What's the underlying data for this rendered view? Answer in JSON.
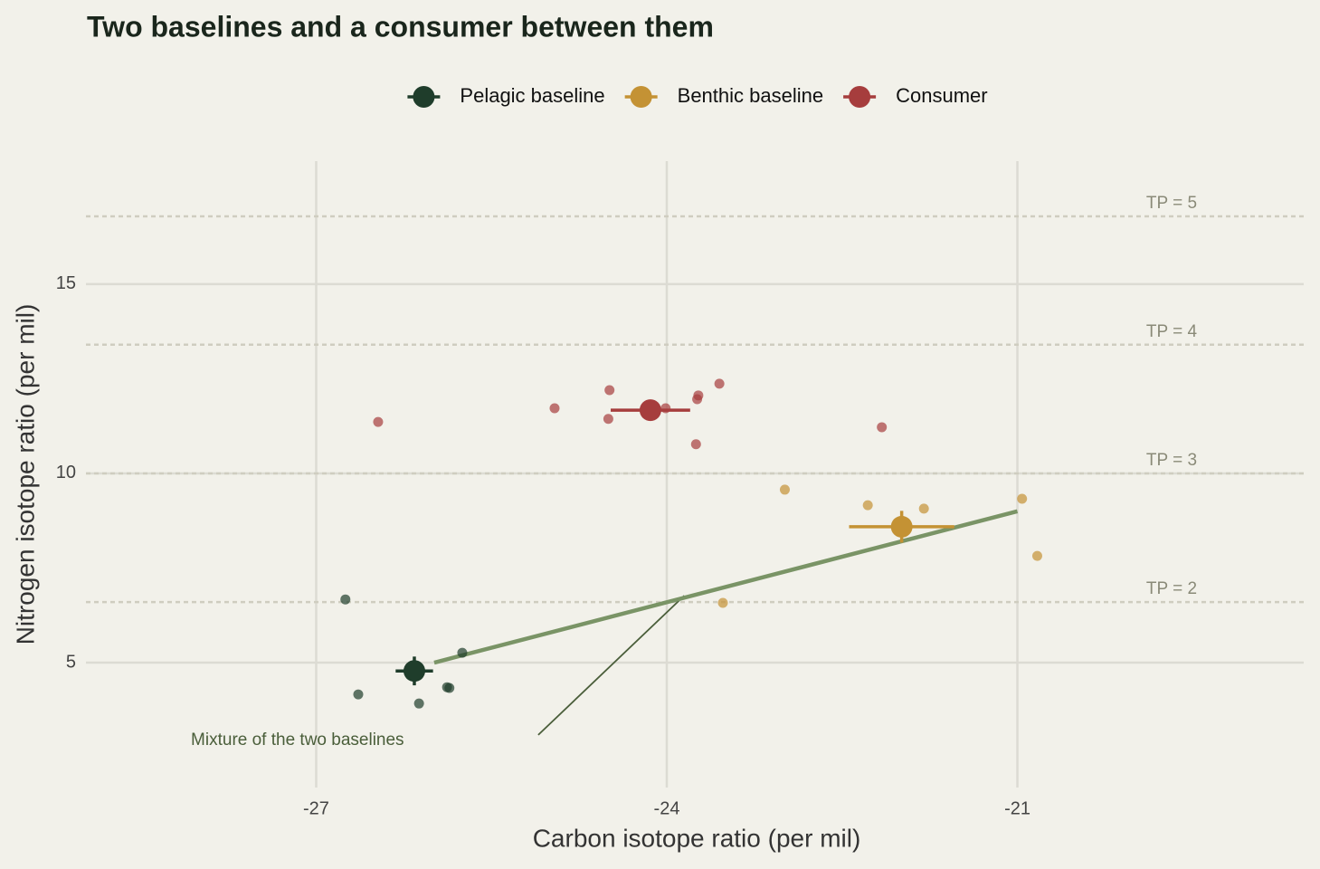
{
  "chart_data": {
    "type": "scatter",
    "title": "Two baselines and a consumer between them",
    "x_label": "Carbon isotope ratio (per mil)",
    "y_label": "Nitrogen isotope ratio (per mil)",
    "xlim": [
      -28.97,
      -18.55
    ],
    "ylim": [
      1.7,
      18.25
    ],
    "xticks": [
      -27,
      -24,
      -21
    ],
    "yticks": [
      5,
      10,
      15
    ],
    "grid": true,
    "legend": "top",
    "series": [
      {
        "name": "Pelagic baseline",
        "color": "#1f3d2b",
        "x": [
          -26.75,
          -26.64,
          -26.12,
          -25.88,
          -25.86,
          -25.75
        ],
        "y": [
          6.67,
          4.16,
          3.92,
          4.35,
          4.33,
          5.26
        ],
        "mean": {
          "x": -26.16,
          "y": 4.78,
          "x_err": 0.16,
          "y_err": 0.38
        }
      },
      {
        "name": "Benthic baseline",
        "color": "#c49234",
        "x": [
          -22.99,
          -22.28,
          -21.8,
          -20.96,
          -20.83,
          -23.52
        ],
        "y": [
          9.57,
          9.16,
          9.07,
          9.33,
          7.82,
          6.58
        ],
        "mean": {
          "x": -21.99,
          "y": 8.59,
          "x_err": 0.45,
          "y_err": 0.42
        }
      },
      {
        "name": "Consumer",
        "color": "#a63d3d",
        "x": [
          -26.47,
          -24.96,
          -24.49,
          -24.5,
          -24.01,
          -23.73,
          -23.74,
          -23.75,
          -23.55,
          -22.16
        ],
        "y": [
          11.36,
          11.72,
          12.2,
          11.44,
          11.72,
          12.06,
          11.96,
          10.77,
          12.37,
          11.22
        ],
        "mean": {
          "x": -24.14,
          "y": 11.67,
          "x_err": 0.34,
          "y_err": 0.1
        }
      }
    ],
    "reference_lines": [
      {
        "y": 16.79,
        "label": "TP = 5"
      },
      {
        "y": 13.4,
        "label": "TP = 4"
      },
      {
        "y": 10.0,
        "label": "TP = 3"
      },
      {
        "y": 6.6,
        "label": "TP = 2"
      }
    ],
    "mixing_line": {
      "x": [
        -25.99,
        -21.0
      ],
      "y": [
        5.0,
        9.0
      ],
      "color": "#7a9466"
    },
    "annotation": {
      "text": "Mixture of the two baselines",
      "x": -27.16,
      "y": 2.94,
      "arrow_x": [
        -25.1,
        -23.85
      ],
      "arrow_y": [
        3.09,
        6.77
      ]
    }
  }
}
